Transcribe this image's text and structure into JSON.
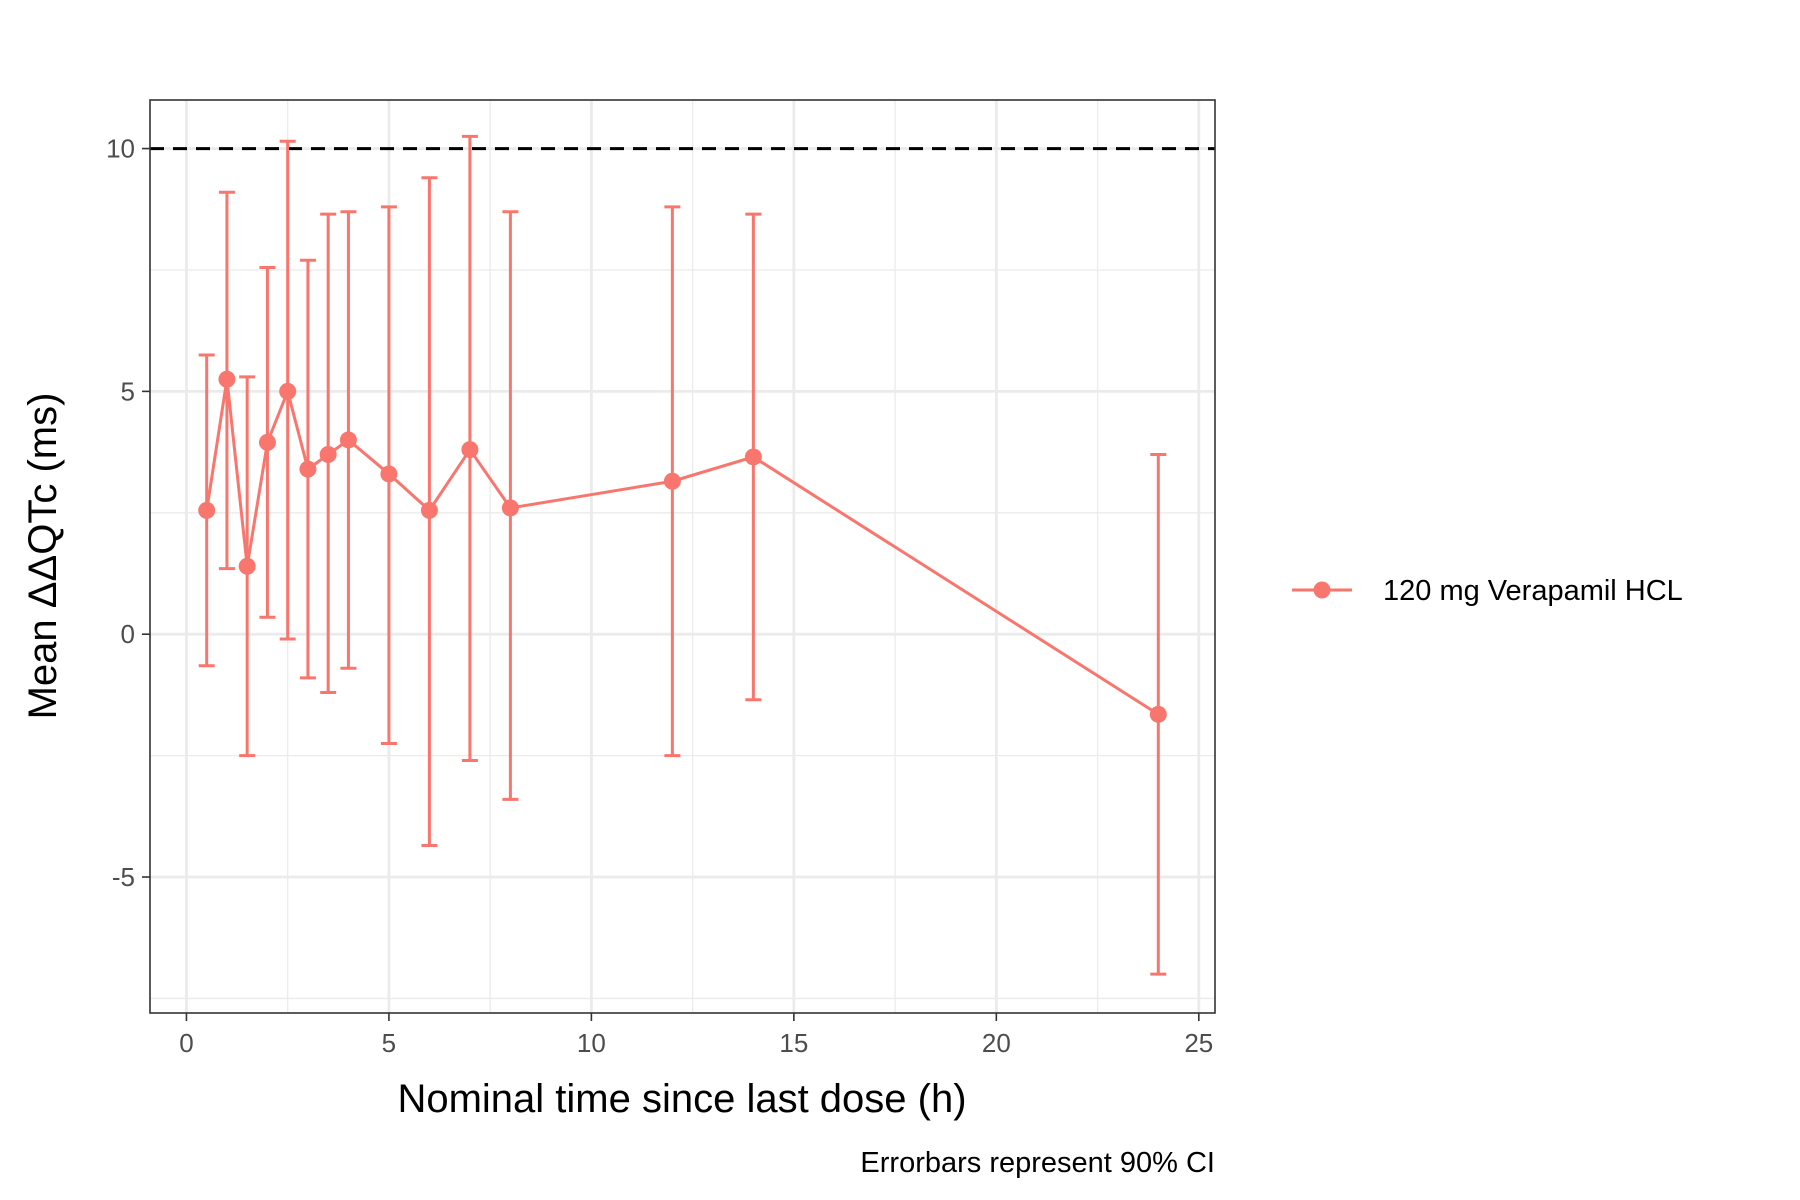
{
  "chart_data": {
    "type": "line",
    "title": "",
    "xlabel": "Nominal time since last dose (h)",
    "ylabel": "Mean ΔΔQTc (ms)",
    "caption": "Errorbars represent 90% CI",
    "xlim": [
      -0.9,
      25.4
    ],
    "ylim": [
      -7.8,
      11.0
    ],
    "x_ticks": [
      0,
      5,
      10,
      15,
      20,
      25
    ],
    "y_ticks": [
      -5,
      0,
      5,
      10
    ],
    "x_tick_labels": [
      "0",
      "5",
      "10",
      "15",
      "20",
      "25"
    ],
    "y_tick_labels": [
      "-5",
      "0",
      "5",
      "10"
    ],
    "grid": true,
    "reference_line": {
      "y": 10,
      "style": "dashed",
      "color": "#000000"
    },
    "legend": {
      "position": "right",
      "entries": [
        "120 mg Verapamil HCL"
      ]
    },
    "series": [
      {
        "name": "120 mg Verapamil HCL",
        "color": "#F8766D",
        "points": [
          {
            "x": 0.5,
            "y": 2.55,
            "lower": -0.65,
            "upper": 5.75
          },
          {
            "x": 1.0,
            "y": 5.25,
            "lower": 1.35,
            "upper": 9.1
          },
          {
            "x": 1.5,
            "y": 1.4,
            "lower": -2.5,
            "upper": 5.3
          },
          {
            "x": 2.0,
            "y": 3.95,
            "lower": 0.35,
            "upper": 7.55
          },
          {
            "x": 2.5,
            "y": 5.0,
            "lower": -0.1,
            "upper": 10.15
          },
          {
            "x": 3.0,
            "y": 3.4,
            "lower": -0.9,
            "upper": 7.7
          },
          {
            "x": 3.5,
            "y": 3.7,
            "lower": -1.2,
            "upper": 8.65
          },
          {
            "x": 4.0,
            "y": 4.0,
            "lower": -0.7,
            "upper": 8.7
          },
          {
            "x": 5.0,
            "y": 3.3,
            "lower": -2.25,
            "upper": 8.8
          },
          {
            "x": 6.0,
            "y": 2.55,
            "lower": -4.35,
            "upper": 9.4
          },
          {
            "x": 7.0,
            "y": 3.8,
            "lower": -2.6,
            "upper": 10.25
          },
          {
            "x": 8.0,
            "y": 2.6,
            "lower": -3.4,
            "upper": 8.7
          },
          {
            "x": 12.0,
            "y": 3.15,
            "lower": -2.5,
            "upper": 8.8
          },
          {
            "x": 14.0,
            "y": 3.65,
            "lower": -1.35,
            "upper": 8.65
          },
          {
            "x": 24.0,
            "y": -1.65,
            "lower": -7.0,
            "upper": 3.7
          }
        ]
      }
    ]
  }
}
